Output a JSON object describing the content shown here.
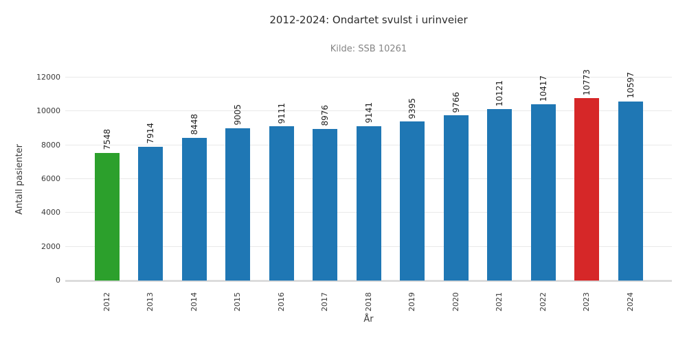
{
  "title": "2012-2024: Ondartet svulst i urinveier",
  "subtitle": "Kilde: SSB 10261",
  "chart_data": {
    "type": "bar",
    "title": "2012-2024: Ondartet svulst i urinveier",
    "subtitle": "Kilde: SSB 10261",
    "xlabel": "År",
    "ylabel": "Antall pasienter",
    "categories": [
      "2012",
      "2013",
      "2014",
      "2015",
      "2016",
      "2017",
      "2018",
      "2019",
      "2020",
      "2021",
      "2022",
      "2023",
      "2024"
    ],
    "values": [
      7548,
      7914,
      8448,
      9005,
      9111,
      8976,
      9141,
      9395,
      9766,
      10121,
      10417,
      10773,
      10597
    ],
    "bar_colors": [
      "#2ca02c",
      "#1f77b4",
      "#1f77b4",
      "#1f77b4",
      "#1f77b4",
      "#1f77b4",
      "#1f77b4",
      "#1f77b4",
      "#1f77b4",
      "#1f77b4",
      "#1f77b4",
      "#d62728",
      "#1f77b4"
    ],
    "ylim": [
      0,
      12000
    ],
    "yticks": [
      0,
      2000,
      4000,
      6000,
      8000,
      10000,
      12000
    ],
    "grid": "horizontal",
    "legend": "none",
    "value_label_rotation": 90,
    "x_tick_rotation": 90,
    "colors": {
      "bar_default": "#1f77b4",
      "bar_first_highlight": "#2ca02c",
      "bar_max_highlight": "#d62728",
      "gridline": "#e9e9e9",
      "baseline": "#dcdcdc",
      "title_text": "#2b2b2b",
      "subtitle_text": "#858585",
      "tick_text": "#3a3a3a",
      "value_text": "#1f1f1f"
    }
  }
}
